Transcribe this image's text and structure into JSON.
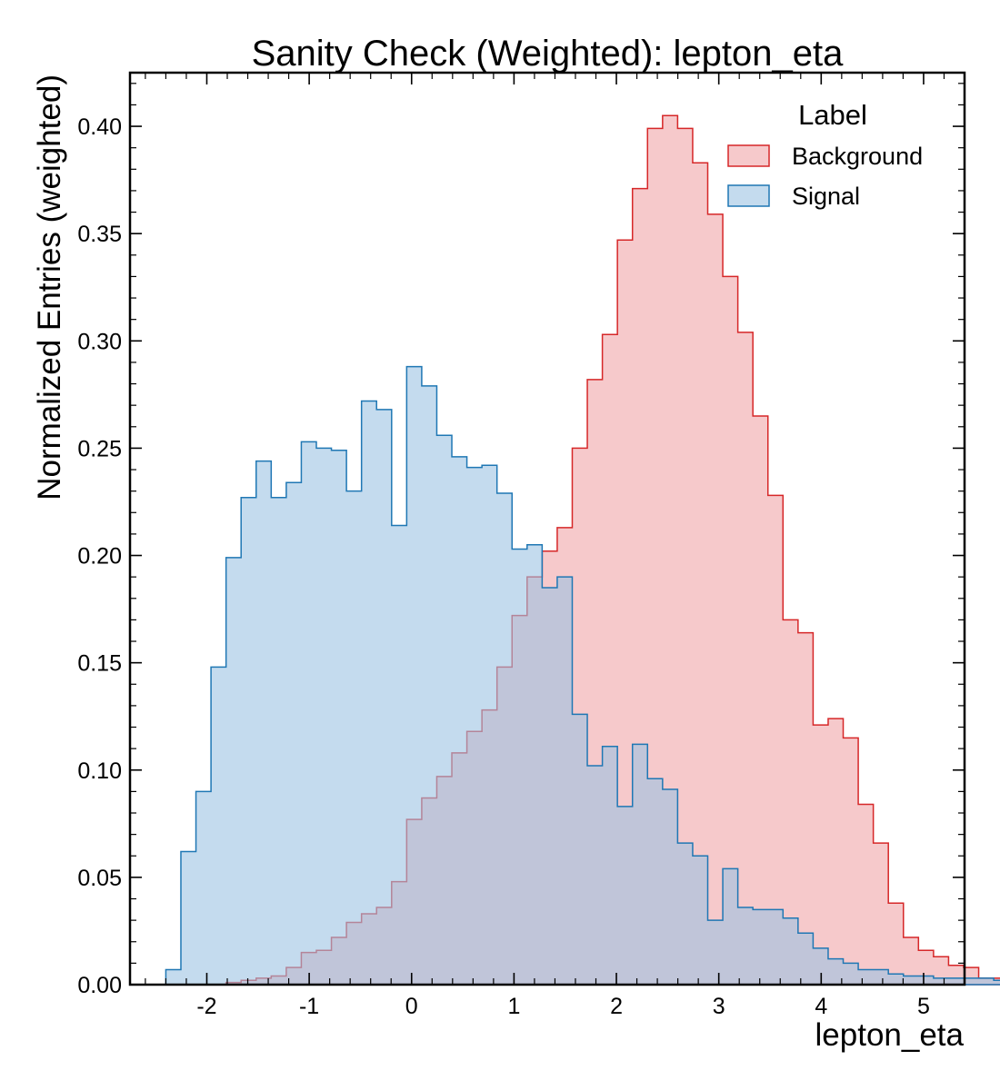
{
  "chart_data": {
    "type": "histogram",
    "title": "Sanity Check (Weighted): lepton_eta",
    "xlabel": "lepton_eta",
    "ylabel": "Normalized Entries (weighted)",
    "xlim": [
      -2.75,
      5.4
    ],
    "ylim": [
      0,
      0.425
    ],
    "x_ticks": [
      -2,
      -1,
      0,
      1,
      2,
      3,
      4,
      5
    ],
    "x_tick_labels": [
      "-2",
      "-1",
      "0",
      "1",
      "2",
      "3",
      "4",
      "5"
    ],
    "y_ticks": [
      0,
      0.05,
      0.1,
      0.15,
      0.2,
      0.25,
      0.3,
      0.35,
      0.4
    ],
    "y_tick_labels": [
      "0.00",
      "0.05",
      "0.10",
      "0.15",
      "0.20",
      "0.25",
      "0.30",
      "0.35",
      "0.40"
    ],
    "bin_start": -2.4,
    "bin_width": 0.147,
    "grid": false,
    "legend": {
      "title": "Label",
      "position": "top-right"
    },
    "series": [
      {
        "name": "Background",
        "edge_color": "#d62728",
        "fill_color": "#f0a5a8",
        "values": [
          0,
          0,
          0,
          0,
          0.001,
          0.002,
          0.003,
          0.004,
          0.008,
          0.015,
          0.016,
          0.022,
          0.029,
          0.033,
          0.036,
          0.048,
          0.077,
          0.087,
          0.097,
          0.108,
          0.118,
          0.128,
          0.148,
          0.172,
          0.19,
          0.202,
          0.213,
          0.25,
          0.282,
          0.303,
          0.347,
          0.371,
          0.399,
          0.405,
          0.399,
          0.383,
          0.359,
          0.33,
          0.304,
          0.265,
          0.228,
          0.17,
          0.164,
          0.121,
          0.124,
          0.115,
          0.084,
          0.066,
          0.038,
          0.022,
          0.016,
          0.013,
          0.009,
          0.008,
          0.003,
          0.003
        ]
      },
      {
        "name": "Signal",
        "edge_color": "#1f77b4",
        "fill_color": "#9dc3e3",
        "values": [
          0.007,
          0.062,
          0.09,
          0.148,
          0.199,
          0.227,
          0.244,
          0.227,
          0.234,
          0.253,
          0.25,
          0.249,
          0.23,
          0.272,
          0.268,
          0.214,
          0.288,
          0.279,
          0.256,
          0.246,
          0.241,
          0.242,
          0.229,
          0.203,
          0.205,
          0.185,
          0.19,
          0.126,
          0.102,
          0.111,
          0.083,
          0.112,
          0.096,
          0.091,
          0.066,
          0.06,
          0.03,
          0.054,
          0.036,
          0.035,
          0.035,
          0.031,
          0.024,
          0.017,
          0.012,
          0.01,
          0.007,
          0.007,
          0.005,
          0.004,
          0.004,
          0.003,
          0.003,
          0.003,
          0.003,
          0.002
        ]
      }
    ]
  }
}
